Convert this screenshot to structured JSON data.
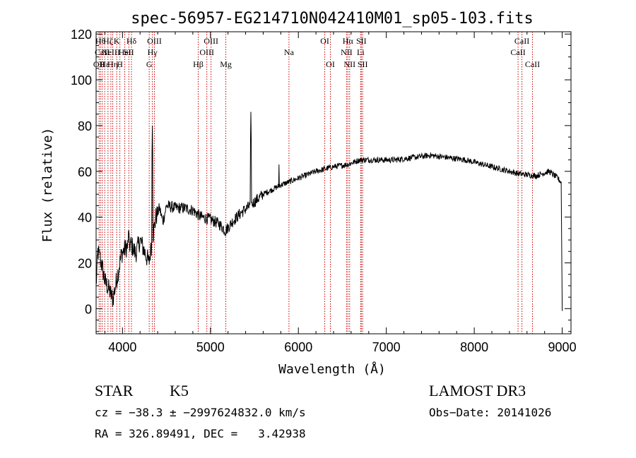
{
  "chart_data": {
    "type": "line",
    "title": "spec-56957-EG214710N042410M01_sp05-103.fits",
    "xlabel": "Wavelength (Å)",
    "ylabel": "Flux (relative)",
    "xlim": [
      3700,
      9100
    ],
    "ylim": [
      -11,
      121
    ],
    "x_ticks": [
      4000,
      5000,
      6000,
      7000,
      8000,
      9000
    ],
    "y_ticks": [
      0,
      20,
      40,
      60,
      80,
      100,
      120
    ],
    "x_tick_labels": [
      "4000",
      "5000",
      "6000",
      "7000",
      "8000",
      "9000"
    ],
    "y_tick_labels": [
      "0",
      "20",
      "40",
      "60",
      "80",
      "100",
      "120"
    ],
    "spectrum_anchor_points": [
      {
        "x": 3700,
        "y": 10
      },
      {
        "x": 3720,
        "y": 25
      },
      {
        "x": 3760,
        "y": 20
      },
      {
        "x": 3800,
        "y": 12
      },
      {
        "x": 3850,
        "y": 8
      },
      {
        "x": 3890,
        "y": 4
      },
      {
        "x": 3930,
        "y": 12
      },
      {
        "x": 3960,
        "y": 18
      },
      {
        "x": 3990,
        "y": 24
      },
      {
        "x": 4050,
        "y": 27
      },
      {
        "x": 4100,
        "y": 28
      },
      {
        "x": 4150,
        "y": 24
      },
      {
        "x": 4200,
        "y": 30
      },
      {
        "x": 4260,
        "y": 24
      },
      {
        "x": 4300,
        "y": 20
      },
      {
        "x": 4330,
        "y": 28
      },
      {
        "x": 4380,
        "y": 40
      },
      {
        "x": 4420,
        "y": 44
      },
      {
        "x": 4460,
        "y": 38
      },
      {
        "x": 4500,
        "y": 45
      },
      {
        "x": 4600,
        "y": 44
      },
      {
        "x": 4700,
        "y": 44
      },
      {
        "x": 4800,
        "y": 43
      },
      {
        "x": 4860,
        "y": 41
      },
      {
        "x": 4900,
        "y": 40
      },
      {
        "x": 5000,
        "y": 39
      },
      {
        "x": 5100,
        "y": 37
      },
      {
        "x": 5170,
        "y": 34
      },
      {
        "x": 5250,
        "y": 38
      },
      {
        "x": 5350,
        "y": 42
      },
      {
        "x": 5450,
        "y": 45
      },
      {
        "x": 5600,
        "y": 50
      },
      {
        "x": 5800,
        "y": 54
      },
      {
        "x": 6000,
        "y": 57
      },
      {
        "x": 6200,
        "y": 60
      },
      {
        "x": 6400,
        "y": 62
      },
      {
        "x": 6560,
        "y": 63
      },
      {
        "x": 6700,
        "y": 65
      },
      {
        "x": 6900,
        "y": 65
      },
      {
        "x": 7100,
        "y": 65
      },
      {
        "x": 7300,
        "y": 66
      },
      {
        "x": 7500,
        "y": 67
      },
      {
        "x": 7700,
        "y": 66
      },
      {
        "x": 7900,
        "y": 65
      },
      {
        "x": 8100,
        "y": 63
      },
      {
        "x": 8300,
        "y": 61
      },
      {
        "x": 8500,
        "y": 59
      },
      {
        "x": 8700,
        "y": 58
      },
      {
        "x": 8850,
        "y": 60
      },
      {
        "x": 8950,
        "y": 57
      },
      {
        "x": 8990,
        "y": 55
      },
      {
        "x": 9000,
        "y": -1
      }
    ],
    "spectrum_spikes": [
      {
        "x": 4340,
        "y": 80
      },
      {
        "x": 5460,
        "y": 86
      },
      {
        "x": 5780,
        "y": 63
      },
      {
        "x": 4070,
        "y": 40
      },
      {
        "x": 3745,
        "y": 27
      }
    ],
    "line_markers": [
      {
        "x": 3734,
        "label": "OII",
        "row": 2
      },
      {
        "x": 3750,
        "label": "Hθ",
        "row": 0
      },
      {
        "x": 3770,
        "label": "CaII",
        "row": 1
      },
      {
        "x": 3798,
        "label": "Hε",
        "row": 2
      },
      {
        "x": 3835,
        "label": "Hζ",
        "row": 0
      },
      {
        "x": 3868,
        "label": "NeIII",
        "row": 1
      },
      {
        "x": 3889,
        "label": "Hη",
        "row": 2
      },
      {
        "x": 3934,
        "label": "K",
        "row": 0
      },
      {
        "x": 3970,
        "label": "H",
        "row": 2
      },
      {
        "x": 4026,
        "label": "HeI",
        "row": 1
      },
      {
        "x": 4072,
        "label": "SII",
        "row": 1
      },
      {
        "x": 4102,
        "label": "Hδ",
        "row": 0
      },
      {
        "x": 4304,
        "label": "G",
        "row": 2
      },
      {
        "x": 4340,
        "label": "Hγ",
        "row": 1
      },
      {
        "x": 4363,
        "label": "OIII",
        "row": 0
      },
      {
        "x": 4861,
        "label": "Hβ",
        "row": 2
      },
      {
        "x": 4959,
        "label": "OIII",
        "row": 1
      },
      {
        "x": 5007,
        "label": "OIII",
        "row": 0
      },
      {
        "x": 5175,
        "label": "Mg",
        "row": 2
      },
      {
        "x": 5893,
        "label": "Na",
        "row": 1
      },
      {
        "x": 6300,
        "label": "OI",
        "row": 0
      },
      {
        "x": 6364,
        "label": "OI",
        "row": 2
      },
      {
        "x": 6548,
        "label": "NII",
        "row": 1
      },
      {
        "x": 6563,
        "label": "Hα",
        "row": 0
      },
      {
        "x": 6583,
        "label": "NII",
        "row": 2
      },
      {
        "x": 6708,
        "label": "Li",
        "row": 1
      },
      {
        "x": 6716,
        "label": "SII",
        "row": 0
      },
      {
        "x": 6731,
        "label": "SII",
        "row": 2
      },
      {
        "x": 8498,
        "label": "CaII",
        "row": 1
      },
      {
        "x": 8542,
        "label": "CaII",
        "row": 0
      },
      {
        "x": 8662,
        "label": "CaII",
        "row": 2
      }
    ],
    "colors": {
      "spectrum": "#000000",
      "markers": "#cc0000",
      "axes": "#000000"
    }
  },
  "info": {
    "object_type": "STAR",
    "subclass": "K5",
    "survey": "LAMOST DR3",
    "cz_line": "cz = −38.3 ± −2997624832.0 km/s",
    "obs_date": "Obs−Date: 20141026",
    "radec_line": "RA = 326.89491, DEC =   3.42938"
  }
}
